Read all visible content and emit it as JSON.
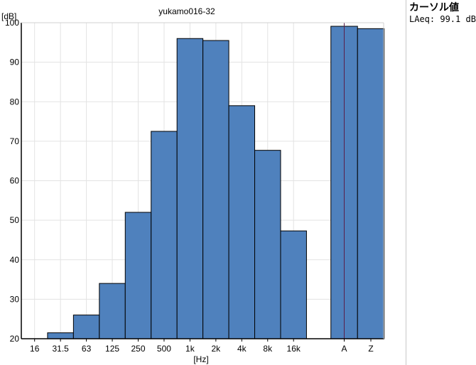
{
  "chart_data": {
    "type": "bar",
    "title": "yukamo016-32",
    "ylabel": "[dB]",
    "xlabel": "[Hz]",
    "ylim": [
      20,
      100
    ],
    "yticks": [
      20,
      30,
      40,
      50,
      60,
      70,
      80,
      90,
      100
    ],
    "categories": [
      "16",
      "31.5",
      "63",
      "125",
      "250",
      "500",
      "1k",
      "2k",
      "4k",
      "8k",
      "16k"
    ],
    "values": [
      null,
      21.5,
      26.0,
      34.0,
      52.0,
      72.5,
      96.0,
      95.5,
      79.0,
      67.7,
      47.3
    ],
    "overall": {
      "categories": [
        "A",
        "Z"
      ],
      "values": [
        99.1,
        98.5
      ]
    },
    "bar_color": "#4f81bd",
    "cursor_line_color": "#5a1e4a",
    "grid": true
  },
  "cursor_panel": {
    "title": "カーソル値",
    "value": "LAeq: 99.1 dB"
  }
}
